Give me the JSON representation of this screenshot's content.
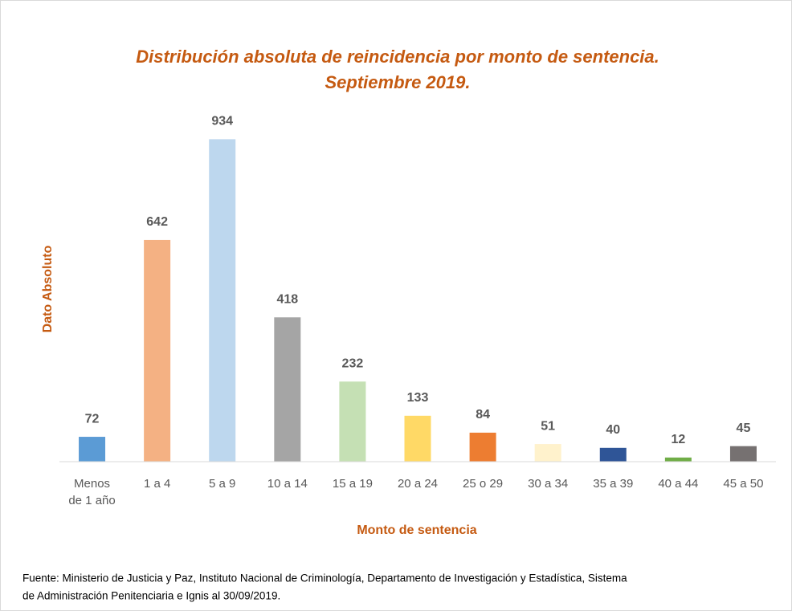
{
  "chart_data": {
    "type": "bar",
    "title": [
      "Distribución absoluta de reincidencia por monto de sentencia.",
      "Septiembre 2019."
    ],
    "x_label": "Monto de sentencia",
    "y_label": "Dato Absoluto",
    "categories": [
      "Menos de 1 año",
      "1 a 4",
      "5 a 9",
      "10 a 14",
      "15 a 19",
      "20 a 24",
      "25 o 29",
      "30 a 34",
      "35 a 39",
      "40 a 44",
      "45 a 50"
    ],
    "values": [
      72,
      642,
      934,
      418,
      232,
      133,
      84,
      51,
      40,
      12,
      45
    ],
    "colors": [
      "#5b9bd5",
      "#f4b183",
      "#bdd7ee",
      "#a5a5a5",
      "#c5e0b4",
      "#ffd966",
      "#ed7d31",
      "#fff2cc",
      "#2f5597",
      "#70ad47",
      "#767171"
    ],
    "ylim": [
      0,
      1000
    ],
    "source": [
      "Fuente: Ministerio de Justicia y Paz, Instituto Nacional de Criminología, Departamento de Investigación y Estadística, Sistema",
      "de Administración Penitenciaria e Ignis al 30/09/2019."
    ]
  }
}
